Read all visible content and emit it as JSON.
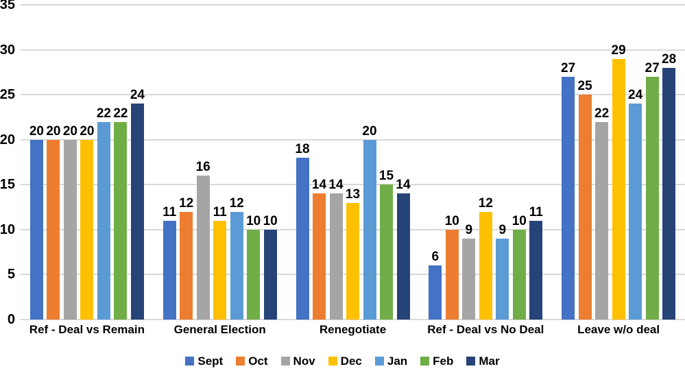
{
  "chart_data": {
    "type": "bar",
    "title": "",
    "xlabel": "",
    "ylabel": "",
    "ylim": [
      0,
      35
    ],
    "yticks": [
      0,
      5,
      10,
      15,
      20,
      25,
      30,
      35
    ],
    "grid": true,
    "gridline_color": "#D9D9D9",
    "label_color": "#000000",
    "background_color": "#FFFFFF",
    "legend_position": "bottom",
    "data_labels": true,
    "categories": [
      "Ref - Deal vs Remain",
      "General Election",
      "Renegotiate",
      "Ref - Deal vs No Deal",
      "Leave w/o deal"
    ],
    "series": [
      {
        "name": "Sept",
        "color": "#4472C4",
        "values": [
          20,
          11,
          18,
          6,
          27
        ]
      },
      {
        "name": "Oct",
        "color": "#ED7D31",
        "values": [
          20,
          12,
          14,
          10,
          25
        ]
      },
      {
        "name": "Nov",
        "color": "#A5A5A5",
        "values": [
          20,
          16,
          14,
          9,
          22
        ]
      },
      {
        "name": "Dec",
        "color": "#FFC000",
        "values": [
          20,
          11,
          13,
          12,
          29
        ]
      },
      {
        "name": "Jan",
        "color": "#5B9BD5",
        "values": [
          22,
          12,
          20,
          9,
          24
        ]
      },
      {
        "name": "Feb",
        "color": "#70AD47",
        "values": [
          22,
          10,
          15,
          10,
          27
        ]
      },
      {
        "name": "Mar",
        "color": "#264478",
        "values": [
          24,
          10,
          14,
          11,
          28
        ]
      }
    ]
  }
}
